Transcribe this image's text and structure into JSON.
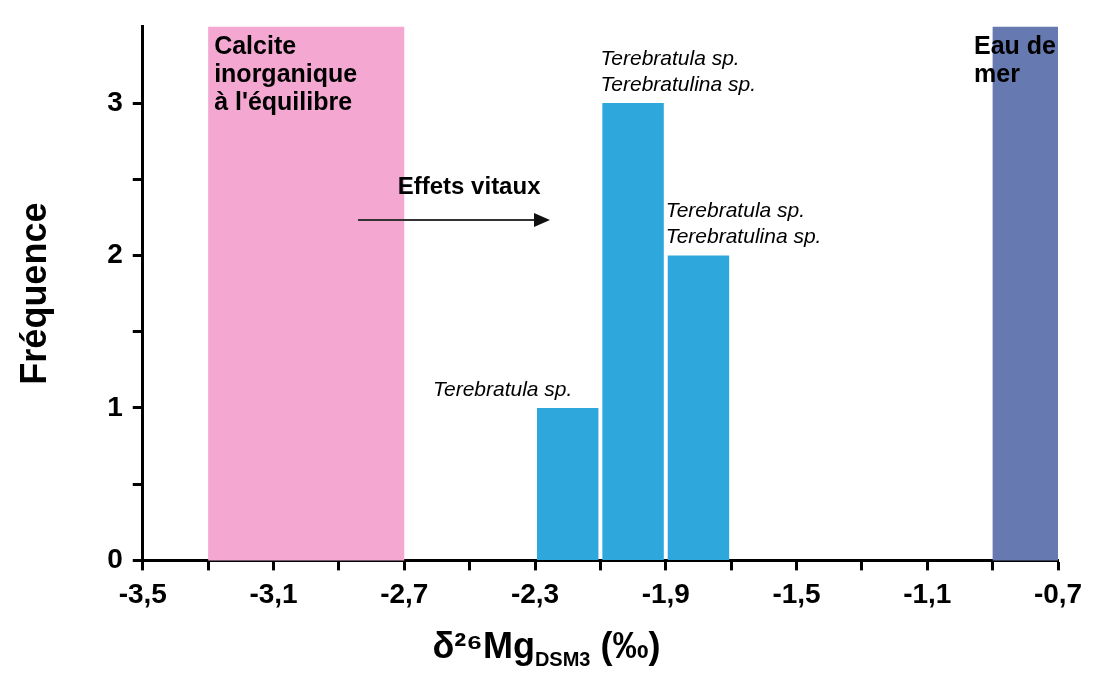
{
  "chart_data": {
    "type": "histogram",
    "xlabel": "δ²⁶Mg$_{DSM3}$ (‰)",
    "ylabel": "Fréquence",
    "bins": [
      -2.3,
      -2.1,
      -1.9,
      -1.7
    ],
    "values": [
      1,
      3,
      2
    ],
    "color": "#2ea8dc",
    "xlim": [
      -3.5,
      -0.7
    ],
    "xticks": [
      {
        "value": -3.5,
        "label": "-3,5"
      },
      {
        "value": -3.3,
        "label": null
      },
      {
        "value": -3.1,
        "label": "-3,1"
      },
      {
        "value": -2.9,
        "label": null
      },
      {
        "value": -2.7,
        "label": "-2,7"
      },
      {
        "value": -2.5,
        "label": null
      },
      {
        "value": -2.3,
        "label": "-2,3"
      },
      {
        "value": -2.1,
        "label": null
      },
      {
        "value": -1.9,
        "label": "-1,9"
      },
      {
        "value": -1.7,
        "label": null
      },
      {
        "value": -1.5,
        "label": "-1,5"
      },
      {
        "value": -1.3,
        "label": null
      },
      {
        "value": -1.1,
        "label": "-1,1"
      },
      {
        "value": -0.9,
        "label": null
      },
      {
        "value": -0.7,
        "label": "-0,7"
      }
    ],
    "ylim": [
      0,
      3.5
    ],
    "yticks": [
      0,
      {
        "value": 0.5,
        "label": null
      },
      1,
      {
        "value": 1.5,
        "label": null
      },
      2,
      {
        "value": 2.5,
        "label": null
      },
      3
    ],
    "bands": [
      {
        "axis": "x",
        "from": -3.3,
        "to": -2.7,
        "label": "Calcite\ninorganique\nà l'équilibre",
        "color": "#f4a7d0"
      },
      {
        "axis": "x",
        "from": -0.9,
        "to": -0.7,
        "label": "Eau de\nmer",
        "color": "#6679b0"
      }
    ],
    "annotations": [
      {
        "text": "Terebratula sp.",
        "x": -2.2,
        "y": 1
      },
      {
        "text": "Terebratula sp.\nTerebratulina sp.",
        "x": -2.0,
        "y": 3
      },
      {
        "text": "Terebratula sp.\nTerebratulina sp.",
        "x": -1.8,
        "y": 2
      },
      "Effets vitaux"
    ]
  }
}
